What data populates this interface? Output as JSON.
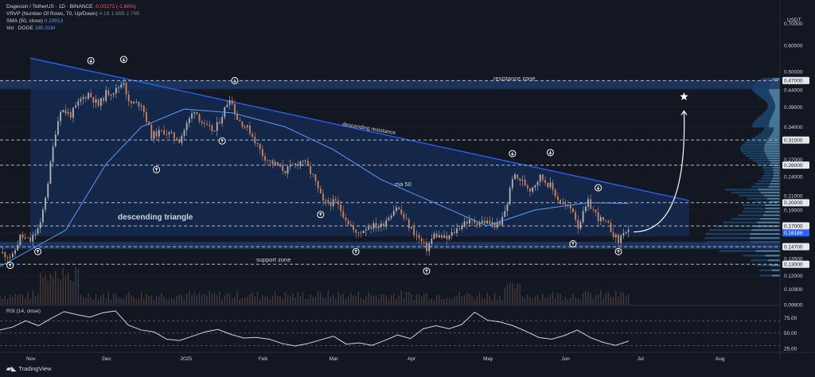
{
  "header": {
    "symbol": "Dogecoin / TetherUS · 1D · BINANCE",
    "change": "-0.00273 (-1.66%)",
    "vrvp": "VRVP (Number Of Rows, 70, Up/Down)",
    "vrvp_values": "4.1B  1.66B  2.76B",
    "sma": "SMA (50, close)",
    "sma_value": "0.19913",
    "vol": "Vol · DOGE",
    "vol_value": "285.31M"
  },
  "colors": {
    "background": "#131722",
    "up": "#b2b5be",
    "down": "#d5835a",
    "sma": "#5b9cf6",
    "zone": "#1e3a66",
    "triangle": "#162d55",
    "resistance_line": "#2962ff",
    "price_badge": "#2962ff",
    "rsi": "#d1d4dc"
  },
  "chart_data": [
    {
      "type": "candlestick",
      "title": "Dogecoin / TetherUS · 1D · BINANCE",
      "y_axis_unit": "USDT",
      "y_scale": "log",
      "ylim": [
        0.098,
        0.79
      ],
      "y_ticks": [
        "0.70000",
        "0.60000",
        "0.50000",
        "0.47000",
        "0.44000",
        "0.39000",
        "0.34000",
        "0.31000",
        "0.27000",
        "0.26000",
        "0.24000",
        "0.21000",
        "0.20000",
        "0.19000",
        "0.17000",
        "0.16186",
        "0.14700",
        "0.13500",
        "0.13000",
        "0.12000",
        "0.10900",
        "0.09800"
      ],
      "highlighted_ticks": [
        "0.47000",
        "0.31000",
        "0.26000",
        "0.20000",
        "0.17000",
        "0.14700",
        "0.13000"
      ],
      "current_price": "0.16186",
      "x_labels": [
        "Nov",
        "Dec",
        "2025",
        "Feb",
        "Mar",
        "Apr",
        "May",
        "Jun",
        "Jul",
        "Aug"
      ],
      "x_range": [
        "2024-10-20",
        "2025-08-25"
      ],
      "closes": [
        {
          "date": "2024-10-20",
          "close": 0.141
        },
        {
          "date": "2024-10-25",
          "close": 0.137
        },
        {
          "date": "2024-10-28",
          "close": 0.158
        },
        {
          "date": "2024-11-01",
          "close": 0.153
        },
        {
          "date": "2024-11-05",
          "close": 0.171
        },
        {
          "date": "2024-11-08",
          "close": 0.232
        },
        {
          "date": "2024-11-11",
          "close": 0.33
        },
        {
          "date": "2024-11-13",
          "close": 0.385
        },
        {
          "date": "2024-11-17",
          "close": 0.37
        },
        {
          "date": "2024-11-21",
          "close": 0.41
        },
        {
          "date": "2024-11-24",
          "close": 0.43
        },
        {
          "date": "2024-11-28",
          "close": 0.395
        },
        {
          "date": "2024-12-01",
          "close": 0.43
        },
        {
          "date": "2024-12-05",
          "close": 0.44
        },
        {
          "date": "2024-12-08",
          "close": 0.47
        },
        {
          "date": "2024-12-10",
          "close": 0.4
        },
        {
          "date": "2024-12-15",
          "close": 0.4
        },
        {
          "date": "2024-12-19",
          "close": 0.32
        },
        {
          "date": "2024-12-24",
          "close": 0.33
        },
        {
          "date": "2024-12-30",
          "close": 0.31
        },
        {
          "date": "2025-01-05",
          "close": 0.385
        },
        {
          "date": "2025-01-09",
          "close": 0.34
        },
        {
          "date": "2025-01-13",
          "close": 0.33
        },
        {
          "date": "2025-01-17",
          "close": 0.385
        },
        {
          "date": "2025-01-19",
          "close": 0.42
        },
        {
          "date": "2025-01-22",
          "close": 0.36
        },
        {
          "date": "2025-01-27",
          "close": 0.33
        },
        {
          "date": "2025-02-01",
          "close": 0.28
        },
        {
          "date": "2025-02-03",
          "close": 0.27
        },
        {
          "date": "2025-02-10",
          "close": 0.25
        },
        {
          "date": "2025-02-17",
          "close": 0.27
        },
        {
          "date": "2025-02-21",
          "close": 0.24
        },
        {
          "date": "2025-02-25",
          "close": 0.2
        },
        {
          "date": "2025-03-02",
          "close": 0.2
        },
        {
          "date": "2025-03-04",
          "close": 0.19
        },
        {
          "date": "2025-03-10",
          "close": 0.16
        },
        {
          "date": "2025-03-15",
          "close": 0.17
        },
        {
          "date": "2025-03-20",
          "close": 0.17
        },
        {
          "date": "2025-03-26",
          "close": 0.195
        },
        {
          "date": "2025-03-31",
          "close": 0.17
        },
        {
          "date": "2025-04-07",
          "close": 0.145
        },
        {
          "date": "2025-04-10",
          "close": 0.16
        },
        {
          "date": "2025-04-15",
          "close": 0.155
        },
        {
          "date": "2025-04-22",
          "close": 0.175
        },
        {
          "date": "2025-04-30",
          "close": 0.175
        },
        {
          "date": "2025-05-06",
          "close": 0.17
        },
        {
          "date": "2025-05-09",
          "close": 0.2
        },
        {
          "date": "2025-05-11",
          "close": 0.24
        },
        {
          "date": "2025-05-14",
          "close": 0.235
        },
        {
          "date": "2025-05-18",
          "close": 0.22
        },
        {
          "date": "2025-05-22",
          "close": 0.24
        },
        {
          "date": "2025-05-26",
          "close": 0.225
        },
        {
          "date": "2025-05-30",
          "close": 0.2
        },
        {
          "date": "2025-06-04",
          "close": 0.19
        },
        {
          "date": "2025-06-06",
          "close": 0.17
        },
        {
          "date": "2025-06-10",
          "close": 0.2
        },
        {
          "date": "2025-06-14",
          "close": 0.18
        },
        {
          "date": "2025-06-18",
          "close": 0.17
        },
        {
          "date": "2025-06-22",
          "close": 0.152
        },
        {
          "date": "2025-06-24",
          "close": 0.164
        },
        {
          "date": "2025-06-26",
          "close": 0.1619
        }
      ],
      "sma50": [
        {
          "date": "2024-10-20",
          "value": 0.128
        },
        {
          "date": "2024-11-15",
          "value": 0.165
        },
        {
          "date": "2024-12-01",
          "value": 0.262
        },
        {
          "date": "2024-12-15",
          "value": 0.34
        },
        {
          "date": "2025-01-01",
          "value": 0.385
        },
        {
          "date": "2025-01-20",
          "value": 0.375
        },
        {
          "date": "2025-02-10",
          "value": 0.34
        },
        {
          "date": "2025-03-01",
          "value": 0.29
        },
        {
          "date": "2025-03-20",
          "value": 0.235
        },
        {
          "date": "2025-04-10",
          "value": 0.2
        },
        {
          "date": "2025-05-01",
          "value": 0.17
        },
        {
          "date": "2025-05-20",
          "value": 0.19
        },
        {
          "date": "2025-06-10",
          "value": 0.2
        },
        {
          "date": "2025-06-26",
          "value": 0.199
        }
      ],
      "annotations": [
        {
          "text": "resistance zone"
        },
        {
          "text": "descending resistance"
        },
        {
          "text": "ma 50"
        },
        {
          "text": "descending triangle"
        },
        {
          "text": "support zone"
        }
      ],
      "bounds_up_markers": [
        "2024-11-25",
        "2024-12-08",
        "2025-01-21",
        "2025-05-11",
        "2025-05-26",
        "2025-06-14"
      ],
      "bounds_down_markers": [
        "2024-10-24",
        "2024-11-04",
        "2024-12-21",
        "2025-01-16",
        "2025-02-24",
        "2025-03-10",
        "2025-04-07",
        "2025-06-04",
        "2025-06-22"
      ]
    },
    {
      "type": "line",
      "title": "RSI (14, close)",
      "ylim": [
        20,
        95
      ],
      "y_ticks": [
        "75.00",
        "50.00",
        "25.00"
      ],
      "dashed_levels": [
        70,
        50,
        30
      ],
      "values": [
        55,
        60,
        70,
        62,
        74,
        85,
        80,
        76,
        83,
        86,
        63,
        55,
        52,
        40,
        38,
        45,
        52,
        56,
        48,
        42,
        43,
        40,
        33,
        29,
        33,
        39,
        45,
        32,
        34,
        30,
        38,
        47,
        41,
        57,
        62,
        57,
        64,
        84,
        71,
        68,
        62,
        53,
        43,
        40,
        46,
        55,
        43,
        35,
        30,
        37
      ]
    }
  ]
}
